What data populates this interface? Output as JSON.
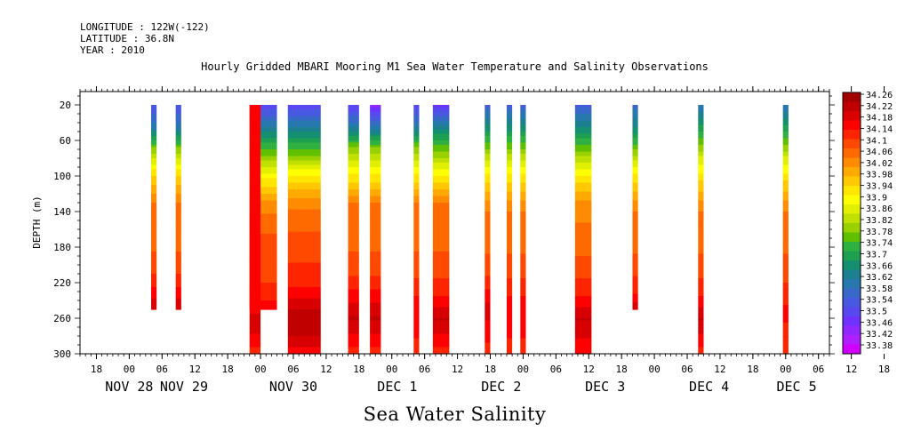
{
  "header": {
    "longitude": "LONGITUDE : 122W(-122)",
    "latitude": "LATITUDE : 36.8N",
    "year": "YEAR : 2010"
  },
  "chart_data": {
    "type": "heatmap",
    "title": "Hourly Gridded MBARI Mooring M1 Sea Water Temperature and Salinity Observations",
    "xlabel": "Sea Water Salinity",
    "ylabel": "DEPTH (m)",
    "xlim_hours": [
      -9,
      128
    ],
    "ylim": [
      300,
      5
    ],
    "yticks": [
      20,
      60,
      100,
      140,
      180,
      220,
      260,
      300
    ],
    "xtick_hours": [
      "18",
      "00",
      "06",
      "12",
      "18",
      "00",
      "06",
      "12",
      "18",
      "00",
      "06",
      "12",
      "18",
      "00",
      "06",
      "12",
      "18",
      "00",
      "06",
      "12",
      "18",
      "00",
      "06",
      "12",
      "18",
      "00",
      "06",
      "12",
      "18",
      "00",
      "06",
      "12"
    ],
    "xtick_hours_start": -6,
    "day_labels": [
      {
        "label": "NOV 28",
        "hour": 0
      },
      {
        "label": "NOV 29",
        "hour": 10
      },
      {
        "label": "NOV 30",
        "hour": 30
      },
      {
        "label": "DEC  1",
        "hour": 49
      },
      {
        "label": "DEC  2",
        "hour": 68
      },
      {
        "label": "DEC  3",
        "hour": 87
      },
      {
        "label": "DEC  4",
        "hour": 106
      },
      {
        "label": "DEC  5",
        "hour": 122
      }
    ],
    "columns": [
      {
        "t0": 4,
        "t1": 5,
        "zmax": 250,
        "profile": [
          [
            20,
            33.54
          ],
          [
            45,
            33.62
          ],
          [
            70,
            33.8
          ],
          [
            100,
            33.95
          ],
          [
            130,
            34.04
          ],
          [
            200,
            34.08
          ],
          [
            235,
            34.16
          ],
          [
            250,
            34.2
          ]
        ]
      },
      {
        "t0": 8.5,
        "t1": 9.5,
        "zmax": 250,
        "profile": [
          [
            20,
            33.54
          ],
          [
            45,
            33.62
          ],
          [
            70,
            33.8
          ],
          [
            100,
            33.95
          ],
          [
            130,
            34.04
          ],
          [
            200,
            34.08
          ],
          [
            235,
            34.16
          ],
          [
            250,
            34.2
          ]
        ]
      },
      {
        "t0": 22,
        "t1": 27,
        "zmax": 250,
        "profile": [
          [
            20,
            33.5
          ],
          [
            30,
            33.56
          ],
          [
            50,
            33.66
          ],
          [
            75,
            33.78
          ],
          [
            100,
            33.9
          ],
          [
            130,
            34.02
          ],
          [
            160,
            34.07
          ],
          [
            200,
            34.08
          ],
          [
            235,
            34.12
          ],
          [
            250,
            34.16
          ]
        ]
      },
      {
        "t0": 22,
        "t1": 24,
        "zmax": 300,
        "profile": [
          [
            250,
            34.16
          ],
          [
            270,
            34.18
          ],
          [
            300,
            34.12
          ]
        ]
      },
      {
        "t0": 29,
        "t1": 35,
        "zmax": 300,
        "profile": [
          [
            20,
            33.5
          ],
          [
            30,
            33.56
          ],
          [
            50,
            33.66
          ],
          [
            75,
            33.78
          ],
          [
            100,
            33.92
          ],
          [
            130,
            34.03
          ],
          [
            170,
            34.08
          ],
          [
            220,
            34.12
          ],
          [
            250,
            34.2
          ],
          [
            280,
            34.2
          ],
          [
            300,
            34.14
          ]
        ]
      },
      {
        "t0": 40,
        "t1": 42,
        "zmax": 300,
        "profile": [
          [
            20,
            33.5
          ],
          [
            40,
            33.6
          ],
          [
            70,
            33.8
          ],
          [
            100,
            33.92
          ],
          [
            130,
            34.04
          ],
          [
            200,
            34.08
          ],
          [
            240,
            34.16
          ],
          [
            260,
            34.2
          ],
          [
            300,
            34.12
          ]
        ]
      },
      {
        "t0": 44,
        "t1": 46,
        "zmax": 300,
        "profile": [
          [
            20,
            33.46
          ],
          [
            40,
            33.58
          ],
          [
            70,
            33.8
          ],
          [
            100,
            33.92
          ],
          [
            130,
            34.04
          ],
          [
            200,
            34.08
          ],
          [
            240,
            34.16
          ],
          [
            260,
            34.2
          ],
          [
            300,
            34.12
          ]
        ]
      },
      {
        "t0": 52,
        "t1": 53,
        "zmax": 300,
        "profile": [
          [
            20,
            33.52
          ],
          [
            40,
            33.6
          ],
          [
            70,
            33.8
          ],
          [
            100,
            33.92
          ],
          [
            130,
            34.04
          ],
          [
            200,
            34.08
          ],
          [
            250,
            34.16
          ],
          [
            300,
            34.12
          ]
        ]
      },
      {
        "t0": 55.5,
        "t1": 58.5,
        "zmax": 300,
        "profile": [
          [
            20,
            33.48
          ],
          [
            30,
            33.56
          ],
          [
            50,
            33.68
          ],
          [
            75,
            33.8
          ],
          [
            100,
            33.92
          ],
          [
            130,
            34.04
          ],
          [
            200,
            34.08
          ],
          [
            240,
            34.14
          ],
          [
            260,
            34.2
          ],
          [
            300,
            34.12
          ]
        ]
      },
      {
        "t0": 65,
        "t1": 66,
        "zmax": 300,
        "profile": [
          [
            20,
            33.56
          ],
          [
            50,
            33.7
          ],
          [
            80,
            33.84
          ],
          [
            110,
            33.96
          ],
          [
            140,
            34.04
          ],
          [
            200,
            34.08
          ],
          [
            250,
            34.18
          ],
          [
            300,
            34.12
          ]
        ]
      },
      {
        "t0": 69,
        "t1": 70,
        "zmax": 300,
        "profile": [
          [
            20,
            33.56
          ],
          [
            50,
            33.7
          ],
          [
            80,
            33.84
          ],
          [
            110,
            33.96
          ],
          [
            140,
            34.04
          ],
          [
            200,
            34.08
          ],
          [
            250,
            34.16
          ],
          [
            300,
            34.12
          ]
        ]
      },
      {
        "t0": 71.5,
        "t1": 72.5,
        "zmax": 300,
        "profile": [
          [
            20,
            33.56
          ],
          [
            50,
            33.7
          ],
          [
            80,
            33.84
          ],
          [
            110,
            33.96
          ],
          [
            140,
            34.04
          ],
          [
            200,
            34.08
          ],
          [
            250,
            34.16
          ],
          [
            300,
            34.12
          ]
        ]
      },
      {
        "t0": 81.5,
        "t1": 84.5,
        "zmax": 300,
        "profile": [
          [
            20,
            33.56
          ],
          [
            40,
            33.64
          ],
          [
            70,
            33.78
          ],
          [
            100,
            33.92
          ],
          [
            130,
            34.02
          ],
          [
            200,
            34.08
          ],
          [
            240,
            34.14
          ],
          [
            260,
            34.2
          ],
          [
            300,
            34.14
          ]
        ]
      },
      {
        "t0": 92,
        "t1": 93,
        "zmax": 250,
        "profile": [
          [
            20,
            33.58
          ],
          [
            50,
            33.68
          ],
          [
            80,
            33.84
          ],
          [
            110,
            33.96
          ],
          [
            140,
            34.04
          ],
          [
            200,
            34.08
          ],
          [
            235,
            34.14
          ],
          [
            250,
            34.2
          ]
        ]
      },
      {
        "t0": 104,
        "t1": 105,
        "zmax": 300,
        "profile": [
          [
            20,
            33.6
          ],
          [
            50,
            33.72
          ],
          [
            80,
            33.86
          ],
          [
            110,
            33.96
          ],
          [
            140,
            34.04
          ],
          [
            200,
            34.08
          ],
          [
            240,
            34.14
          ],
          [
            260,
            34.2
          ],
          [
            300,
            34.12
          ]
        ]
      },
      {
        "t0": 119.5,
        "t1": 120.5,
        "zmax": 300,
        "profile": [
          [
            20,
            33.6
          ],
          [
            50,
            33.72
          ],
          [
            80,
            33.86
          ],
          [
            110,
            33.96
          ],
          [
            140,
            34.04
          ],
          [
            200,
            34.08
          ],
          [
            250,
            34.14
          ],
          [
            300,
            34.12
          ]
        ]
      }
    ],
    "colorbar": {
      "labels": [
        "34.26",
        "34.22",
        "34.18",
        "34.14",
        "34.1",
        "34.06",
        "34.02",
        "33.98",
        "33.94",
        "33.9",
        "33.86",
        "33.82",
        "33.78",
        "33.74",
        "33.7",
        "33.66",
        "33.62",
        "33.58",
        "33.54",
        "33.5",
        "33.46",
        "33.42",
        "33.38"
      ],
      "colors": [
        "#a30000",
        "#c00000",
        "#d80000",
        "#ff0000",
        "#ff2400",
        "#ff4800",
        "#ff6a00",
        "#ff8c00",
        "#ffaa00",
        "#ffc800",
        "#ffe600",
        "#ffff00",
        "#e0f000",
        "#c0e000",
        "#98d000",
        "#60c000",
        "#30b040",
        "#1ea050",
        "#149070",
        "#1c8090",
        "#2878b0",
        "#3868c8",
        "#4858e0",
        "#5848f0",
        "#7030ff",
        "#9028ff",
        "#b020ff",
        "#d000ff"
      ]
    }
  }
}
